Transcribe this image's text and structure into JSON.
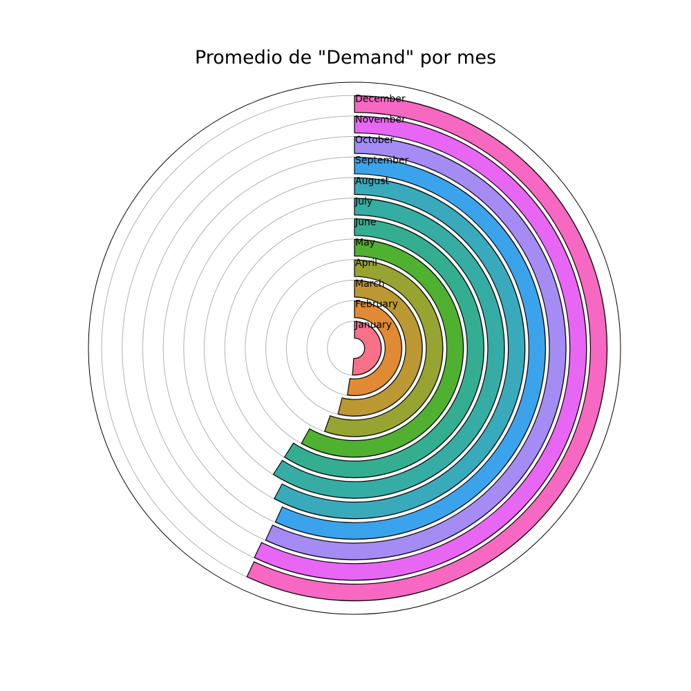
{
  "chart_data": {
    "type": "radial-bar",
    "title": "Promedio de \"Demand\" por mes",
    "categories": [
      "January",
      "February",
      "March",
      "April",
      "May",
      "June",
      "July",
      "August",
      "September",
      "October",
      "November",
      "December"
    ],
    "values": [
      0.512,
      0.524,
      0.539,
      0.555,
      0.581,
      0.591,
      0.591,
      0.578,
      0.568,
      0.569,
      0.571,
      0.57
    ],
    "value_unit": "fraction of full circle (bar sweep clockwise from top)",
    "grid": true,
    "colors": [
      "#f77189",
      "#e08a34",
      "#bb9832",
      "#97a431",
      "#50b131",
      "#34ae91",
      "#36ada4",
      "#38aabb",
      "#3ba3ec",
      "#a48cf4",
      "#e866f4",
      "#f668c2"
    ]
  }
}
